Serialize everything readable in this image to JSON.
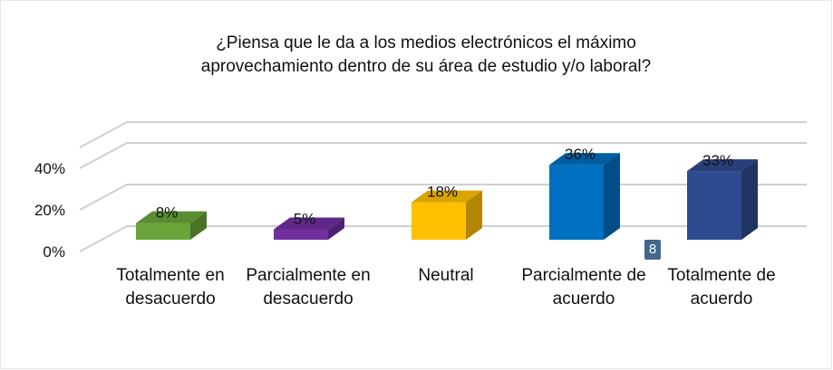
{
  "chart_data": {
    "type": "bar",
    "title": [
      "¿Piensa que le da a los medios electrónicos el máximo",
      "aprovechamiento dentro de su área de estudio y/o laboral?"
    ],
    "categories": [
      "Totalmente en desacuerdo",
      "Parcialmente en desacuerdo",
      "Neutral",
      "Parcialmente de acuerdo",
      "Totalmente de acuerdo"
    ],
    "values": [
      8,
      5,
      18,
      36,
      33
    ],
    "value_labels": [
      "8%",
      "5%",
      "18%",
      "36%",
      "33%"
    ],
    "colors": [
      "#6aa53a",
      "#7030a0",
      "#ffc000",
      "#0070c0",
      "#2f4b8f"
    ],
    "ylim": [
      0,
      50
    ],
    "yticks": [
      {
        "value": 0,
        "label": "0%"
      },
      {
        "value": 20,
        "label": "20%"
      },
      {
        "value": 40,
        "label": "40%"
      }
    ],
    "grid": true
  },
  "badge": "8"
}
